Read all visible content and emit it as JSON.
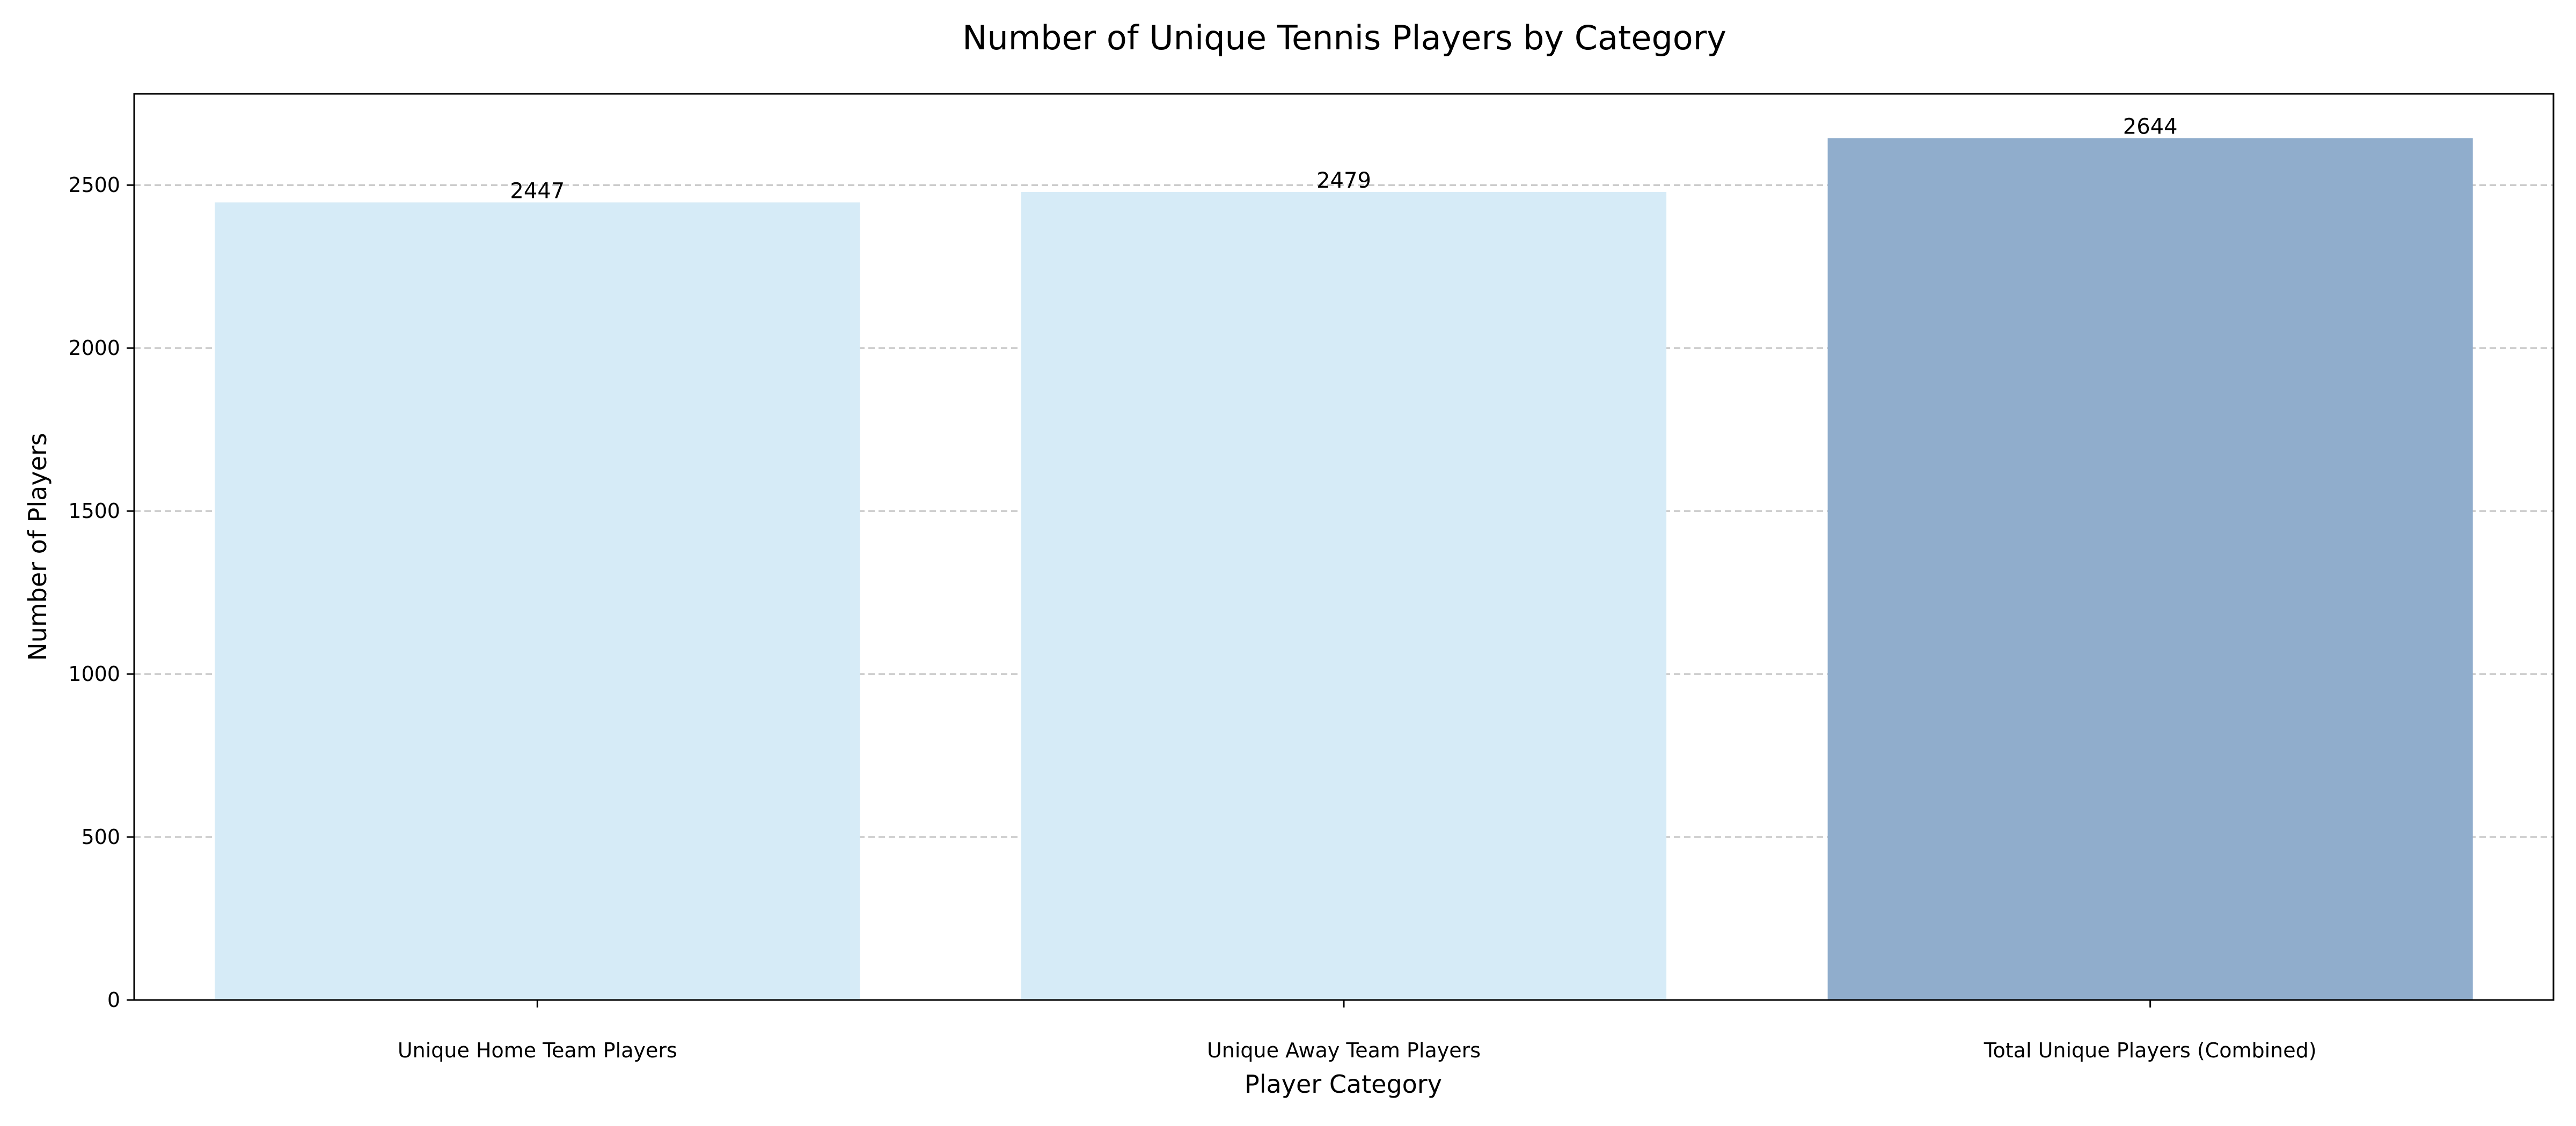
{
  "chart_data": {
    "type": "bar",
    "title": "Number of Unique Tennis Players by Category",
    "xlabel": "Player Category",
    "ylabel": "Number of Players",
    "categories": [
      "Unique Home Team Players",
      "Unique Away Team Players",
      "Total Unique Players (Combined)"
    ],
    "values": [
      2447,
      2479,
      2644
    ],
    "data_labels": [
      "2447",
      "2479",
      "2644"
    ],
    "bar_colors": [
      "#d6ebf7",
      "#d6ebf7",
      "#90adcc"
    ],
    "ylim": [
      0,
      2780
    ],
    "yticks": [
      0,
      500,
      1000,
      1500,
      2000,
      2500
    ],
    "ytick_labels": [
      "0",
      "500",
      "1000",
      "1500",
      "2000",
      "2500"
    ],
    "grid": "y-dashed",
    "legend": "none"
  }
}
